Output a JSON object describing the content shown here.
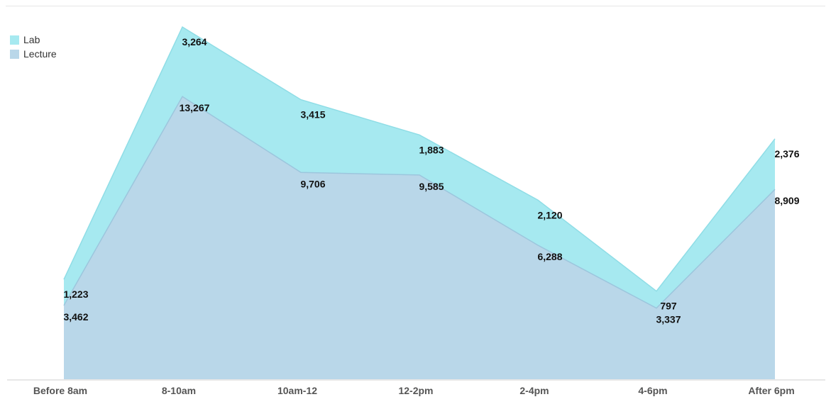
{
  "chart_data": {
    "type": "area",
    "stacked": true,
    "categories": [
      "Before 8am",
      "8-10am",
      "10am-12",
      "12-2pm",
      "2-4pm",
      "4-6pm",
      "After 6pm"
    ],
    "series": [
      {
        "name": "Lecture",
        "values": [
          3462,
          13267,
          9706,
          9585,
          6288,
          3337,
          8909
        ],
        "color": "#b9d7e9"
      },
      {
        "name": "Lab",
        "values": [
          1223,
          3264,
          3415,
          1883,
          2120,
          797,
          2376
        ],
        "color": "#a6e9f0"
      }
    ],
    "ylim": [
      0,
      17200
    ],
    "grid": false,
    "legend_position": "top-left",
    "title": "",
    "xlabel": "",
    "ylabel": ""
  }
}
